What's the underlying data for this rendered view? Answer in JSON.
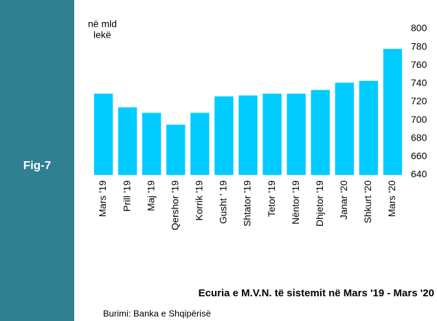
{
  "sidebar": {
    "label": "Fig-7"
  },
  "chart_data": {
    "type": "bar",
    "y_axis_label": [
      "në mld",
      "lekë"
    ],
    "title": "Ecuria e M.V.N. të sistemit në Mars '19 - Mars '20",
    "source": "Burimi: Banka e Shqipërisë",
    "categories": [
      "Mars '19",
      "Prill '19",
      "Maj '19",
      "Qershor '19",
      "Korrik '19",
      "Gusht ' 19",
      "Shtator '19",
      "Tetor '19",
      "Nëntor '19",
      "Dhjetor '19",
      "Janar '20",
      "Shkurt '20",
      "Mars '20"
    ],
    "values": [
      729,
      714,
      708,
      695,
      708,
      726,
      727,
      729,
      729,
      733,
      741,
      743,
      778
    ],
    "color": "#00ccff",
    "ylim": [
      640,
      800
    ],
    "yticks": [
      640,
      660,
      680,
      700,
      720,
      740,
      760,
      780,
      800
    ],
    "grid": false
  }
}
